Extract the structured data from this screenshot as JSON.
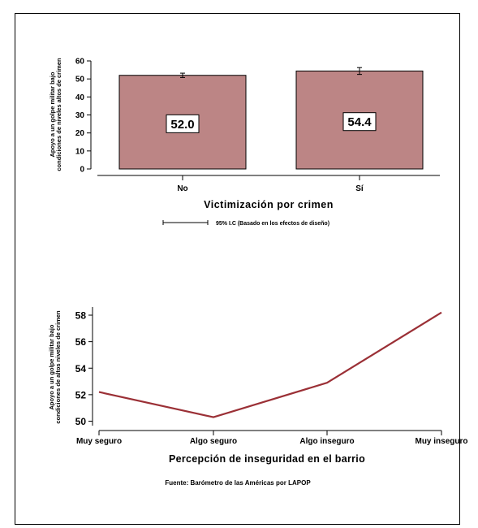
{
  "chart_data": [
    {
      "type": "bar",
      "categories": [
        "No",
        "Sí"
      ],
      "values": [
        52.0,
        54.4
      ],
      "ci": [
        [
          50.8,
          53.2
        ],
        [
          52.5,
          56.3
        ]
      ],
      "data_labels": [
        "52.0",
        "54.4"
      ],
      "xlabel": "Victimización por crimen",
      "ylabel": [
        "Apoyo a un golpe militar bajo",
        "condiciones de niveles altos de crimen"
      ],
      "ylim": [
        0,
        60
      ],
      "yticks": [
        0,
        10,
        20,
        30,
        40,
        50,
        60
      ],
      "legend_ci": "95% I.C (Basado en los efectos de diseño)",
      "colors": {
        "bar": "#bc8585",
        "bar_edge": "#000000"
      },
      "grid": false
    },
    {
      "type": "line",
      "categories": [
        "Muy seguro",
        "Algo seguro",
        "Algo inseguro",
        "Muy inseguro"
      ],
      "values": [
        52.2,
        50.3,
        52.9,
        58.2
      ],
      "xlabel": "Percepción de inseguridad en el barrio",
      "ylabel": [
        "Apoyo a un golpe militar bajo",
        "condiciones de altos niveles de crimen"
      ],
      "ylim": [
        49.6,
        58.6
      ],
      "yticks": [
        50,
        52,
        54,
        56,
        58
      ],
      "colors": {
        "line": "#9b3036"
      },
      "grid": false
    }
  ],
  "source_note": "Fuente: Barómetro de las Américas por LAPOP"
}
